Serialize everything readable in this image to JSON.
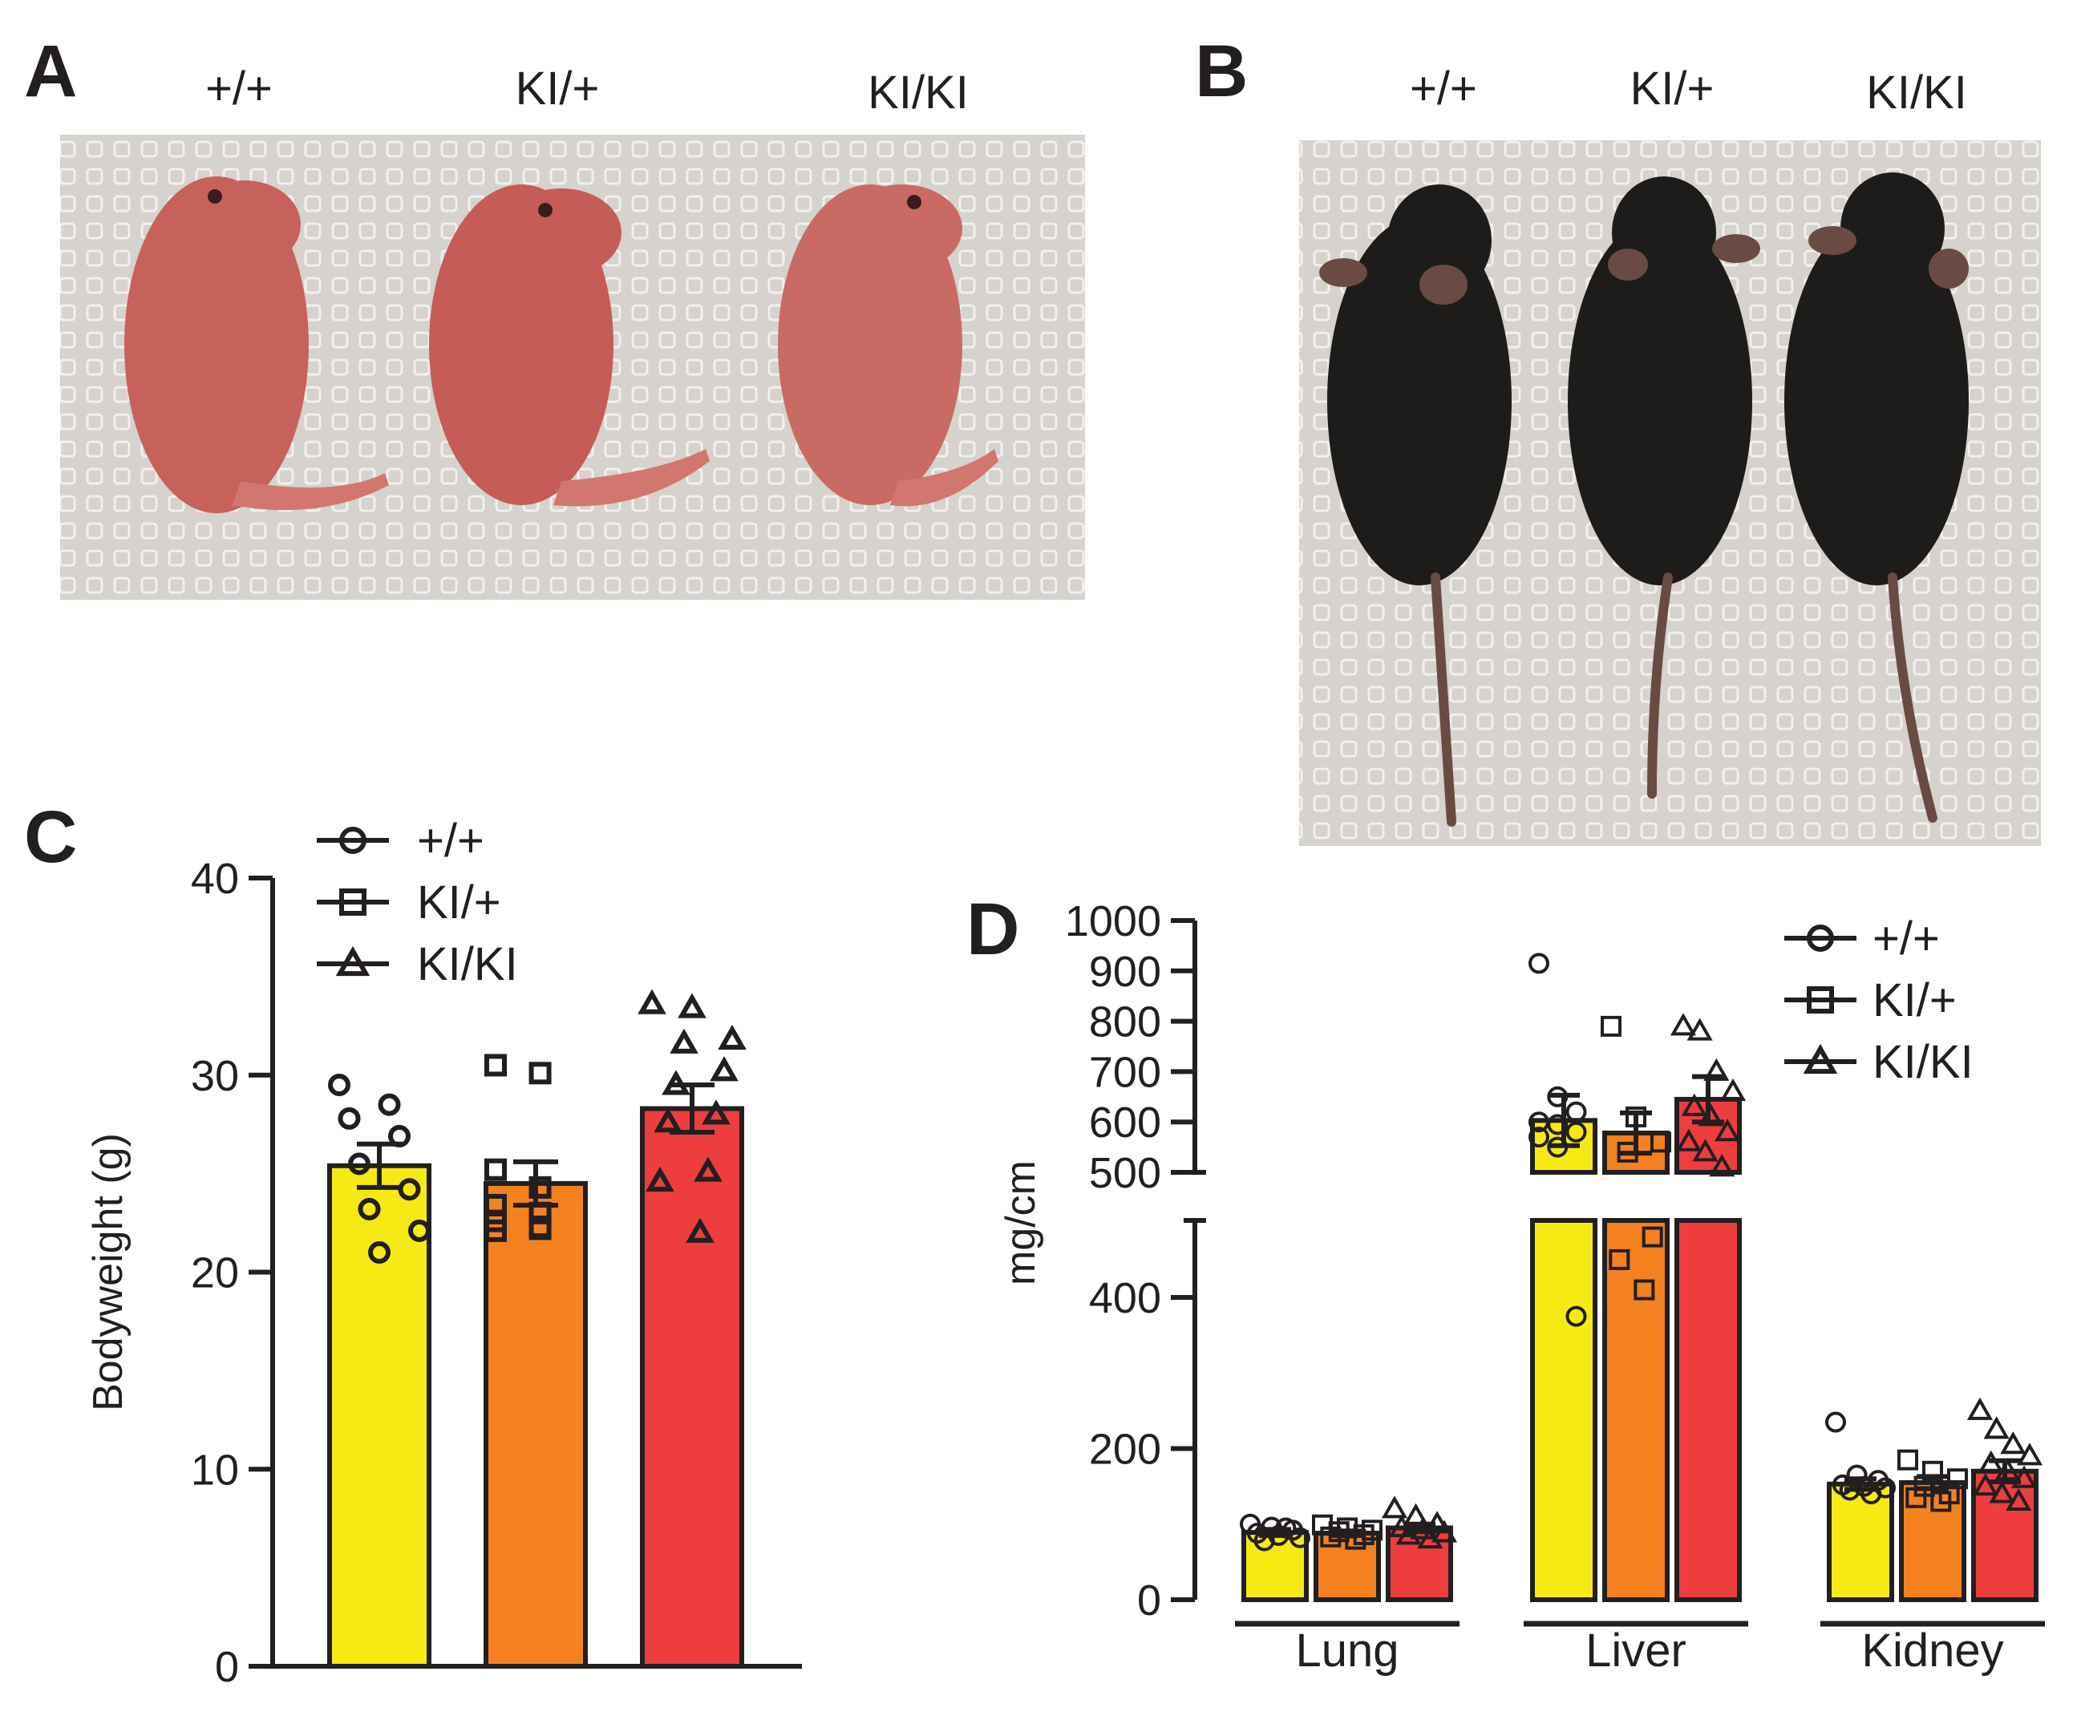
{
  "panels": {
    "A": {
      "letter": "A",
      "genotype_labels": [
        "+/+",
        "KI/+",
        "KI/KI"
      ],
      "photo": "three-neonatal-pups"
    },
    "B": {
      "letter": "B",
      "genotype_labels": [
        "+/+",
        "KI/+",
        "KI/KI"
      ],
      "photo": "three-adult-black-mice"
    },
    "C": {
      "letter": "C"
    },
    "D": {
      "letter": "D"
    }
  },
  "colors": {
    "wt": "#f5ea14",
    "het": "#f48120",
    "ko": "#ee3d3f",
    "axis": "#231f20",
    "photo_bg": "#d8d4cf",
    "pup": "#c45a55",
    "mouse": "#1e1b1b"
  },
  "chart_data": [
    {
      "id": "C",
      "type": "bar",
      "title": "",
      "ylabel": "Bodyweight (g)",
      "xlabel": "",
      "ylim": [
        0,
        40
      ],
      "yticks": [
        0,
        10,
        20,
        30,
        40
      ],
      "legend_position": "top-left",
      "categories": [
        "+/+",
        "KI/+",
        "KI/KI"
      ],
      "series": [
        {
          "name": "+/+",
          "marker": "circle",
          "mean": 25.4,
          "sem": 1.1,
          "points": [
            29.5,
            28.5,
            27.8,
            26.9,
            25.5,
            24.2,
            23.2,
            22.1,
            21.0
          ]
        },
        {
          "name": "KI/+",
          "marker": "square",
          "mean": 24.5,
          "sem": 1.1,
          "points": [
            30.5,
            30.1,
            25.2,
            24.3,
            23.4,
            23.0,
            22.6,
            22.3,
            22.1,
            22.2
          ]
        },
        {
          "name": "KI/KI",
          "marker": "triangle",
          "mean": 28.3,
          "sem": 1.2,
          "points": [
            33.6,
            33.4,
            31.8,
            31.6,
            30.2,
            29.5,
            28.0,
            27.6,
            25.1,
            24.6,
            22.0
          ]
        }
      ]
    },
    {
      "id": "D",
      "type": "bar",
      "title": "",
      "ylabel": "mg/cm",
      "xlabel": "",
      "y_axis_break": [
        500,
        500
      ],
      "ylim_lower": [
        0,
        500
      ],
      "ylim_upper": [
        500,
        1000
      ],
      "yticks_lower": [
        0,
        200,
        400
      ],
      "yticks_upper": [
        500,
        600,
        700,
        800,
        900,
        1000
      ],
      "legend_position": "top-right",
      "categories": [
        "Lung",
        "Liver",
        "Kidney"
      ],
      "series": [
        {
          "name": "+/+",
          "marker": "circle",
          "mean": [
            89,
            603,
            153
          ],
          "sem": [
            4,
            50,
            7
          ],
          "points": [
            [
              100,
              96,
              92,
              88,
              85,
              82,
              78,
              95
            ],
            [
              915,
              650,
              620,
              600,
              595,
              580,
              570,
              550,
              375
            ],
            [
              235,
              165,
              158,
              152,
              150,
              148,
              145,
              140
            ]
          ]
        },
        {
          "name": "KI/+",
          "marker": "square",
          "mean": [
            88,
            578,
            155
          ],
          "sem": [
            3,
            40,
            8
          ],
          "points": [
            [
              99,
              95,
              92,
              90,
              86,
              83,
              80
            ],
            [
              790,
              610,
              560,
              540,
              480,
              450,
              410
            ],
            [
              185,
              170,
              160,
              150,
              140,
              135,
              130
            ]
          ]
        },
        {
          "name": "KI/KI",
          "marker": "triangle",
          "mean": [
            95,
            645,
            170
          ],
          "sem": [
            5,
            45,
            14
          ],
          "points": [
            [
              120,
              110,
              100,
              95,
              92,
              88,
              85,
              80
            ],
            [
              790,
              780,
              700,
              660,
              630,
              610,
              580,
              560,
              540,
              510
            ],
            [
              250,
              225,
              205,
              190,
              180,
              170,
              160,
              150,
              140,
              130
            ]
          ]
        }
      ]
    }
  ]
}
